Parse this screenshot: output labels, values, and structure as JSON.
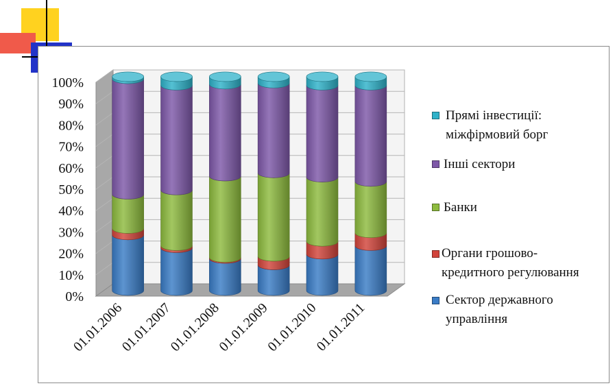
{
  "colors": {
    "deco_yellow": "#FFD21F",
    "deco_red": "#F05A4A",
    "deco_blue": "#2233C8"
  },
  "chart_data": {
    "type": "bar",
    "stacked": true,
    "style": "3d-cylinder",
    "categories": [
      "01.01.2006",
      "01.01.2007",
      "01.01.2008",
      "01.01.2009",
      "01.01.2010",
      "01.01.2011"
    ],
    "ylim": [
      0,
      100
    ],
    "yticks": [
      "0%",
      "10%",
      "20%",
      "30%",
      "40%",
      "50%",
      "60%",
      "70%",
      "80%",
      "90%",
      "100%"
    ],
    "grid": true,
    "legend_position": "right",
    "series": [
      {
        "name": "Сектор державного управління",
        "color": "#3A7CC6",
        "values": [
          26,
          20,
          15,
          12,
          17,
          21
        ]
      },
      {
        "name": "Органи грошово-кредитного регулювання",
        "color": "#D2443B",
        "values": [
          3,
          1,
          0.5,
          4,
          6,
          6
        ]
      },
      {
        "name": "Банки",
        "color": "#8DBB3E",
        "values": [
          16,
          26,
          38,
          39,
          30,
          24
        ]
      },
      {
        "name": "Інші сектори",
        "color": "#7E58A8",
        "values": [
          54,
          49,
          43,
          42,
          43,
          45
        ]
      },
      {
        "name": "Прямі інвестиції: міжфірмовий борг",
        "color": "#2FB2C9",
        "values": [
          1,
          4,
          3.5,
          3,
          4,
          4
        ]
      }
    ]
  },
  "legend": [
    {
      "line1": "Прямі інвестиції:",
      "line2": "міжфірмовий борг"
    },
    {
      "line1": "Інші сектори",
      "line2": ""
    },
    {
      "line1": "Банки",
      "line2": ""
    },
    {
      "line1": "Органи грошово-",
      "line2": "кредитного регулювання"
    },
    {
      "line1": "Сектор державного",
      "line2": "управління"
    }
  ]
}
